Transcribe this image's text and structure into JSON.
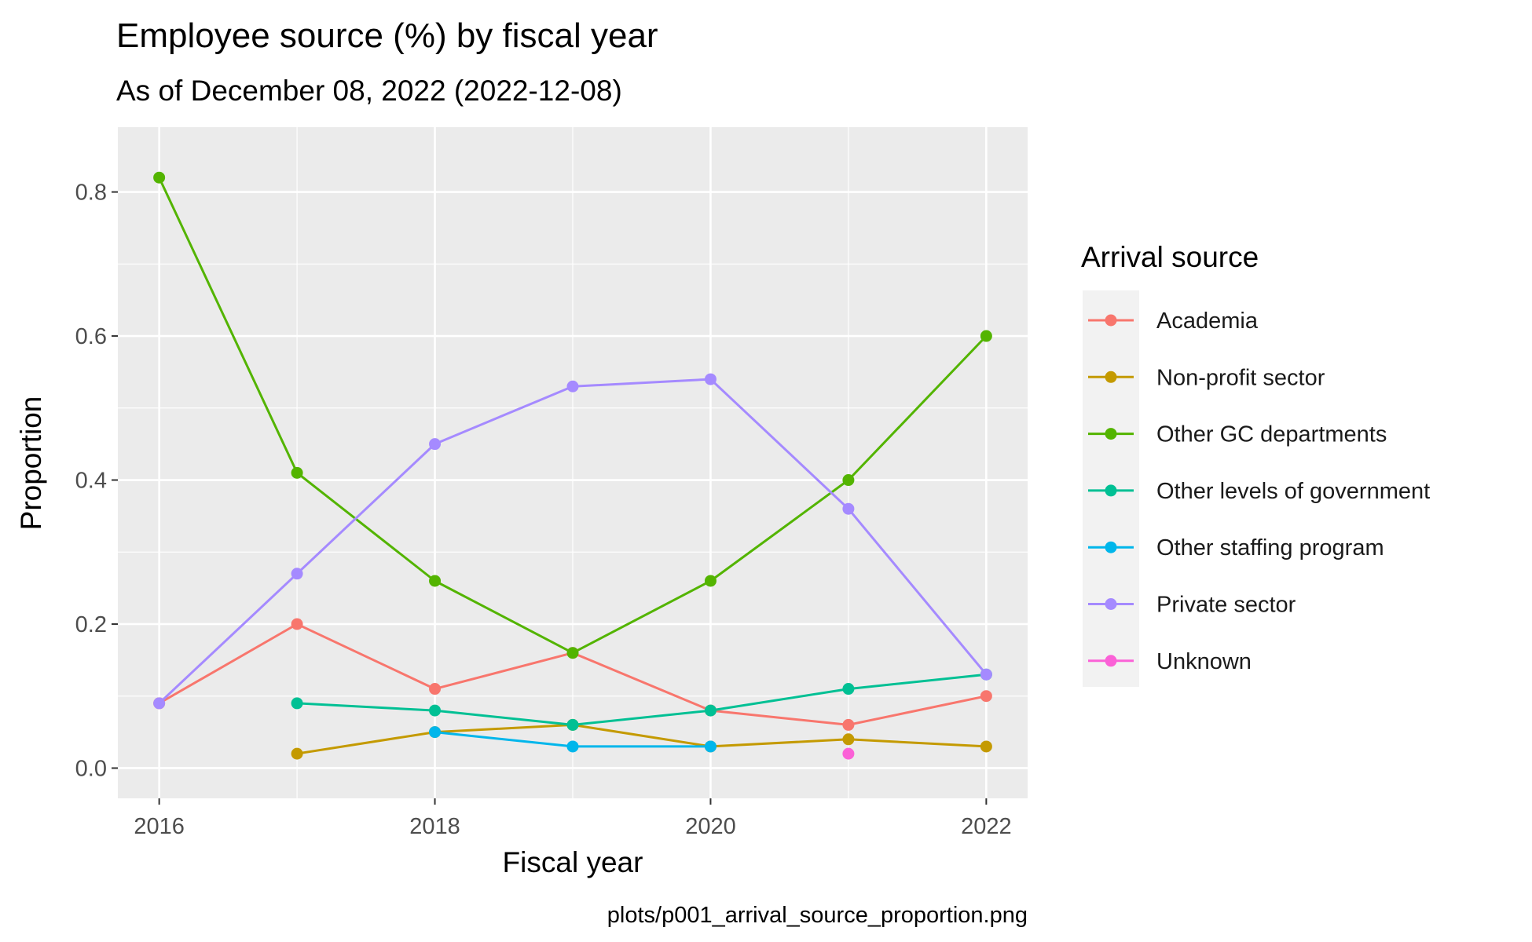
{
  "chart_data": {
    "type": "line",
    "title": "Employee source (%) by fiscal year",
    "subtitle": "As of December 08, 2022 (2022-12-08)",
    "xlabel": "Fiscal year",
    "ylabel": "Proportion",
    "caption": "plots/p001_arrival_source_proportion.png",
    "legend_title": "Arrival source",
    "legend_position": "right",
    "grid": true,
    "xlim": [
      2015.7,
      2022.3
    ],
    "ylim": [
      -0.042,
      0.89
    ],
    "x_ticks": [
      2016,
      2018,
      2020,
      2022
    ],
    "y_ticks": [
      0.0,
      0.2,
      0.4,
      0.6,
      0.8
    ],
    "y_tick_labels": [
      "0.0",
      "0.2",
      "0.4",
      "0.6",
      "0.8"
    ],
    "series": [
      {
        "name": "Academia",
        "color": "#F8766D",
        "x": [
          2016,
          2017,
          2018,
          2019,
          2020,
          2021,
          2022
        ],
        "values": [
          0.09,
          0.2,
          0.11,
          0.16,
          0.08,
          0.06,
          0.1
        ]
      },
      {
        "name": "Non-profit sector",
        "color": "#C49A00",
        "x": [
          2017,
          2018,
          2019,
          2020,
          2021,
          2022
        ],
        "values": [
          0.02,
          0.05,
          0.06,
          0.03,
          0.04,
          0.03
        ]
      },
      {
        "name": "Other GC departments",
        "color": "#53B400",
        "x": [
          2016,
          2017,
          2018,
          2019,
          2020,
          2021,
          2022
        ],
        "values": [
          0.82,
          0.41,
          0.26,
          0.16,
          0.26,
          0.4,
          0.6
        ]
      },
      {
        "name": "Other levels of government",
        "color": "#00C094",
        "x": [
          2017,
          2018,
          2019,
          2020,
          2021,
          2022
        ],
        "values": [
          0.09,
          0.08,
          0.06,
          0.08,
          0.11,
          0.13
        ]
      },
      {
        "name": "Other staffing program",
        "color": "#00B6EB",
        "x": [
          2018,
          2019,
          2020
        ],
        "values": [
          0.05,
          0.03,
          0.03
        ]
      },
      {
        "name": "Private sector",
        "color": "#A58AFF",
        "x": [
          2016,
          2017,
          2018,
          2019,
          2020,
          2021,
          2022
        ],
        "values": [
          0.09,
          0.27,
          0.45,
          0.53,
          0.54,
          0.36,
          0.13
        ]
      },
      {
        "name": "Unknown",
        "color": "#FB61D7",
        "x": [
          2021
        ],
        "values": [
          0.02
        ]
      }
    ]
  }
}
